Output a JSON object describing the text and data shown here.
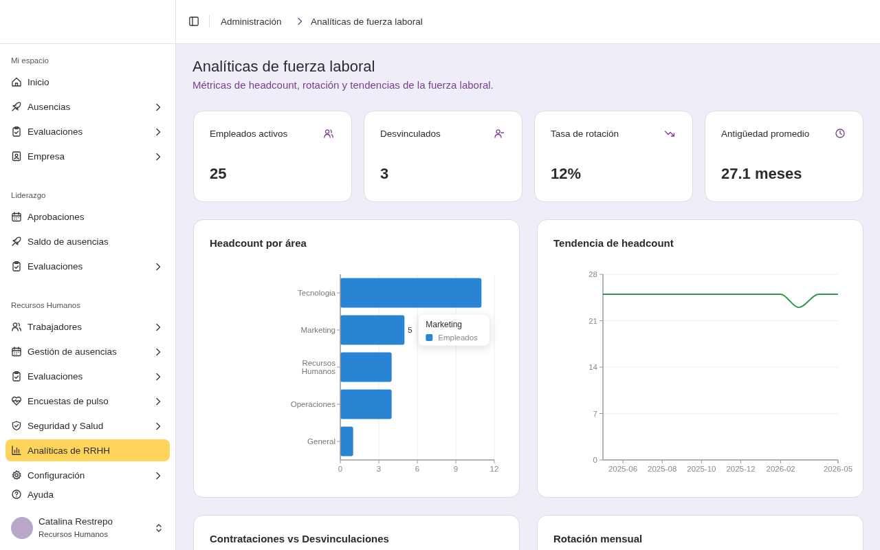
{
  "chart_data": [
    {
      "type": "other",
      "annotations": [
        "Mi espacio",
        "Inicio",
        "Ausencias",
        "Evaluaciones",
        "Empresa",
        "Liderazgo",
        "Aprobaciones",
        "Saldo de ausencias",
        "Evaluaciones",
        "Recursos Humanos",
        "Trabajadores",
        "Gestión de ausencias",
        "Evaluaciones",
        "Encuestas de pulso",
        "Seguridad y Salud",
        "Analíticas de RRHH",
        "Configuración",
        "Ayuda",
        "Catalina Restrepo",
        "Recursos Humanos",
        "Administración",
        "Analíticas de fuerza laboral"
      ]
    },
    {
      "type": "other",
      "title": "Analíticas de fuerza laboral",
      "subtitle": "Métricas de headcount, rotación y tendencias de la fuerza laboral."
    },
    {
      "type": "other",
      "title": "Empleados activos",
      "annotations": [
        "25"
      ]
    },
    {
      "type": "other",
      "title": "Desvinculados",
      "annotations": [
        "3"
      ]
    },
    {
      "type": "other",
      "title": "Tasa de rotación",
      "annotations": [
        "12%"
      ]
    },
    {
      "type": "other",
      "title": "Antigüedad promedio",
      "annotations": [
        "27.1 meses"
      ]
    },
    {
      "type": "bar",
      "title": "Headcount por área",
      "orientation": "horizontal",
      "categories": [
        "Tecnologia",
        "Marketing",
        "Recursos Humanos",
        "Operaciones",
        "General"
      ],
      "series": [
        {
          "name": "Empleados",
          "color": "#2984d4",
          "values": [
            11,
            5,
            4,
            4,
            1
          ],
          "value_labels": [
            null,
            "5",
            null,
            null,
            null
          ]
        }
      ],
      "annotations": [
        {
          "text": "Marketing",
          "x": 5,
          "y": "Marketing"
        }
      ],
      "xlim": [
        0,
        12
      ],
      "xticks": [
        0,
        3,
        6,
        9,
        12
      ],
      "grid": "x",
      "legend": "center"
    },
    {
      "type": "line",
      "title": "Tendencia de headcount",
      "x": [
        "2025-05",
        "2025-06",
        "2025-07",
        "2025-08",
        "2025-09",
        "2025-10",
        "2025-11",
        "2025-12",
        "2026-01",
        "2026-02",
        "2026-03",
        "2026-04",
        "2026-05"
      ],
      "series": [
        {
          "color": "#2e9a4e",
          "values": [
            25,
            25,
            25,
            25,
            25,
            25,
            25,
            25,
            25,
            25,
            23,
            25,
            25
          ]
        }
      ],
      "xlim": [
        "2025-05",
        "2026-05"
      ],
      "xticks": [
        "2025-06",
        "2025-08",
        "2025-10",
        "2025-12",
        "2026-02",
        "2026-05"
      ],
      "ylim": [
        0,
        28
      ],
      "yticks": [
        0,
        7,
        14,
        21,
        28
      ],
      "grid": "y",
      "marker": "none"
    },
    {
      "type": "other",
      "title": "Contrataciones vs Desvinculaciones"
    },
    {
      "type": "other",
      "title": "Rotación mensual"
    }
  ]
}
